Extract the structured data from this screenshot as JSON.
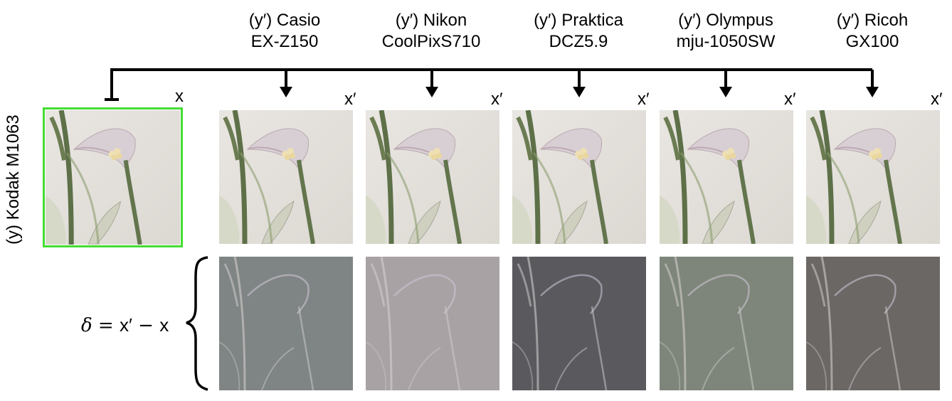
{
  "source": {
    "camera_label": "(y) Kodak M1063",
    "image_label": "x",
    "frame_color": "#44dd33"
  },
  "targets": [
    {
      "line1": "(y′) Casio",
      "line2": "EX-Z150",
      "image_label": "x′",
      "delta_tint": "#7f8584"
    },
    {
      "line1": "(y′) Nikon",
      "line2": "CoolPixS710",
      "image_label": "x′",
      "delta_tint": "#a8a2a4"
    },
    {
      "line1": "(y′) Praktica",
      "line2": "DCZ5.9",
      "image_label": "x′",
      "delta_tint": "#59595e"
    },
    {
      "line1": "(y′) Olympus",
      "line2": "mju-1050SW",
      "image_label": "x′",
      "delta_tint": "#7e867b"
    },
    {
      "line1": "(y′) Ricoh",
      "line2": "GX100",
      "image_label": "x′",
      "delta_tint": "#6b6764"
    }
  ],
  "delta_formula": {
    "delta": "δ",
    "eq": " = ",
    "xprime": "x′",
    "minus": " − ",
    "x": "x"
  },
  "icons": {
    "arrow": "down-arrow-icon",
    "brace": "left-brace-icon",
    "tee": "tee-stop-icon"
  }
}
